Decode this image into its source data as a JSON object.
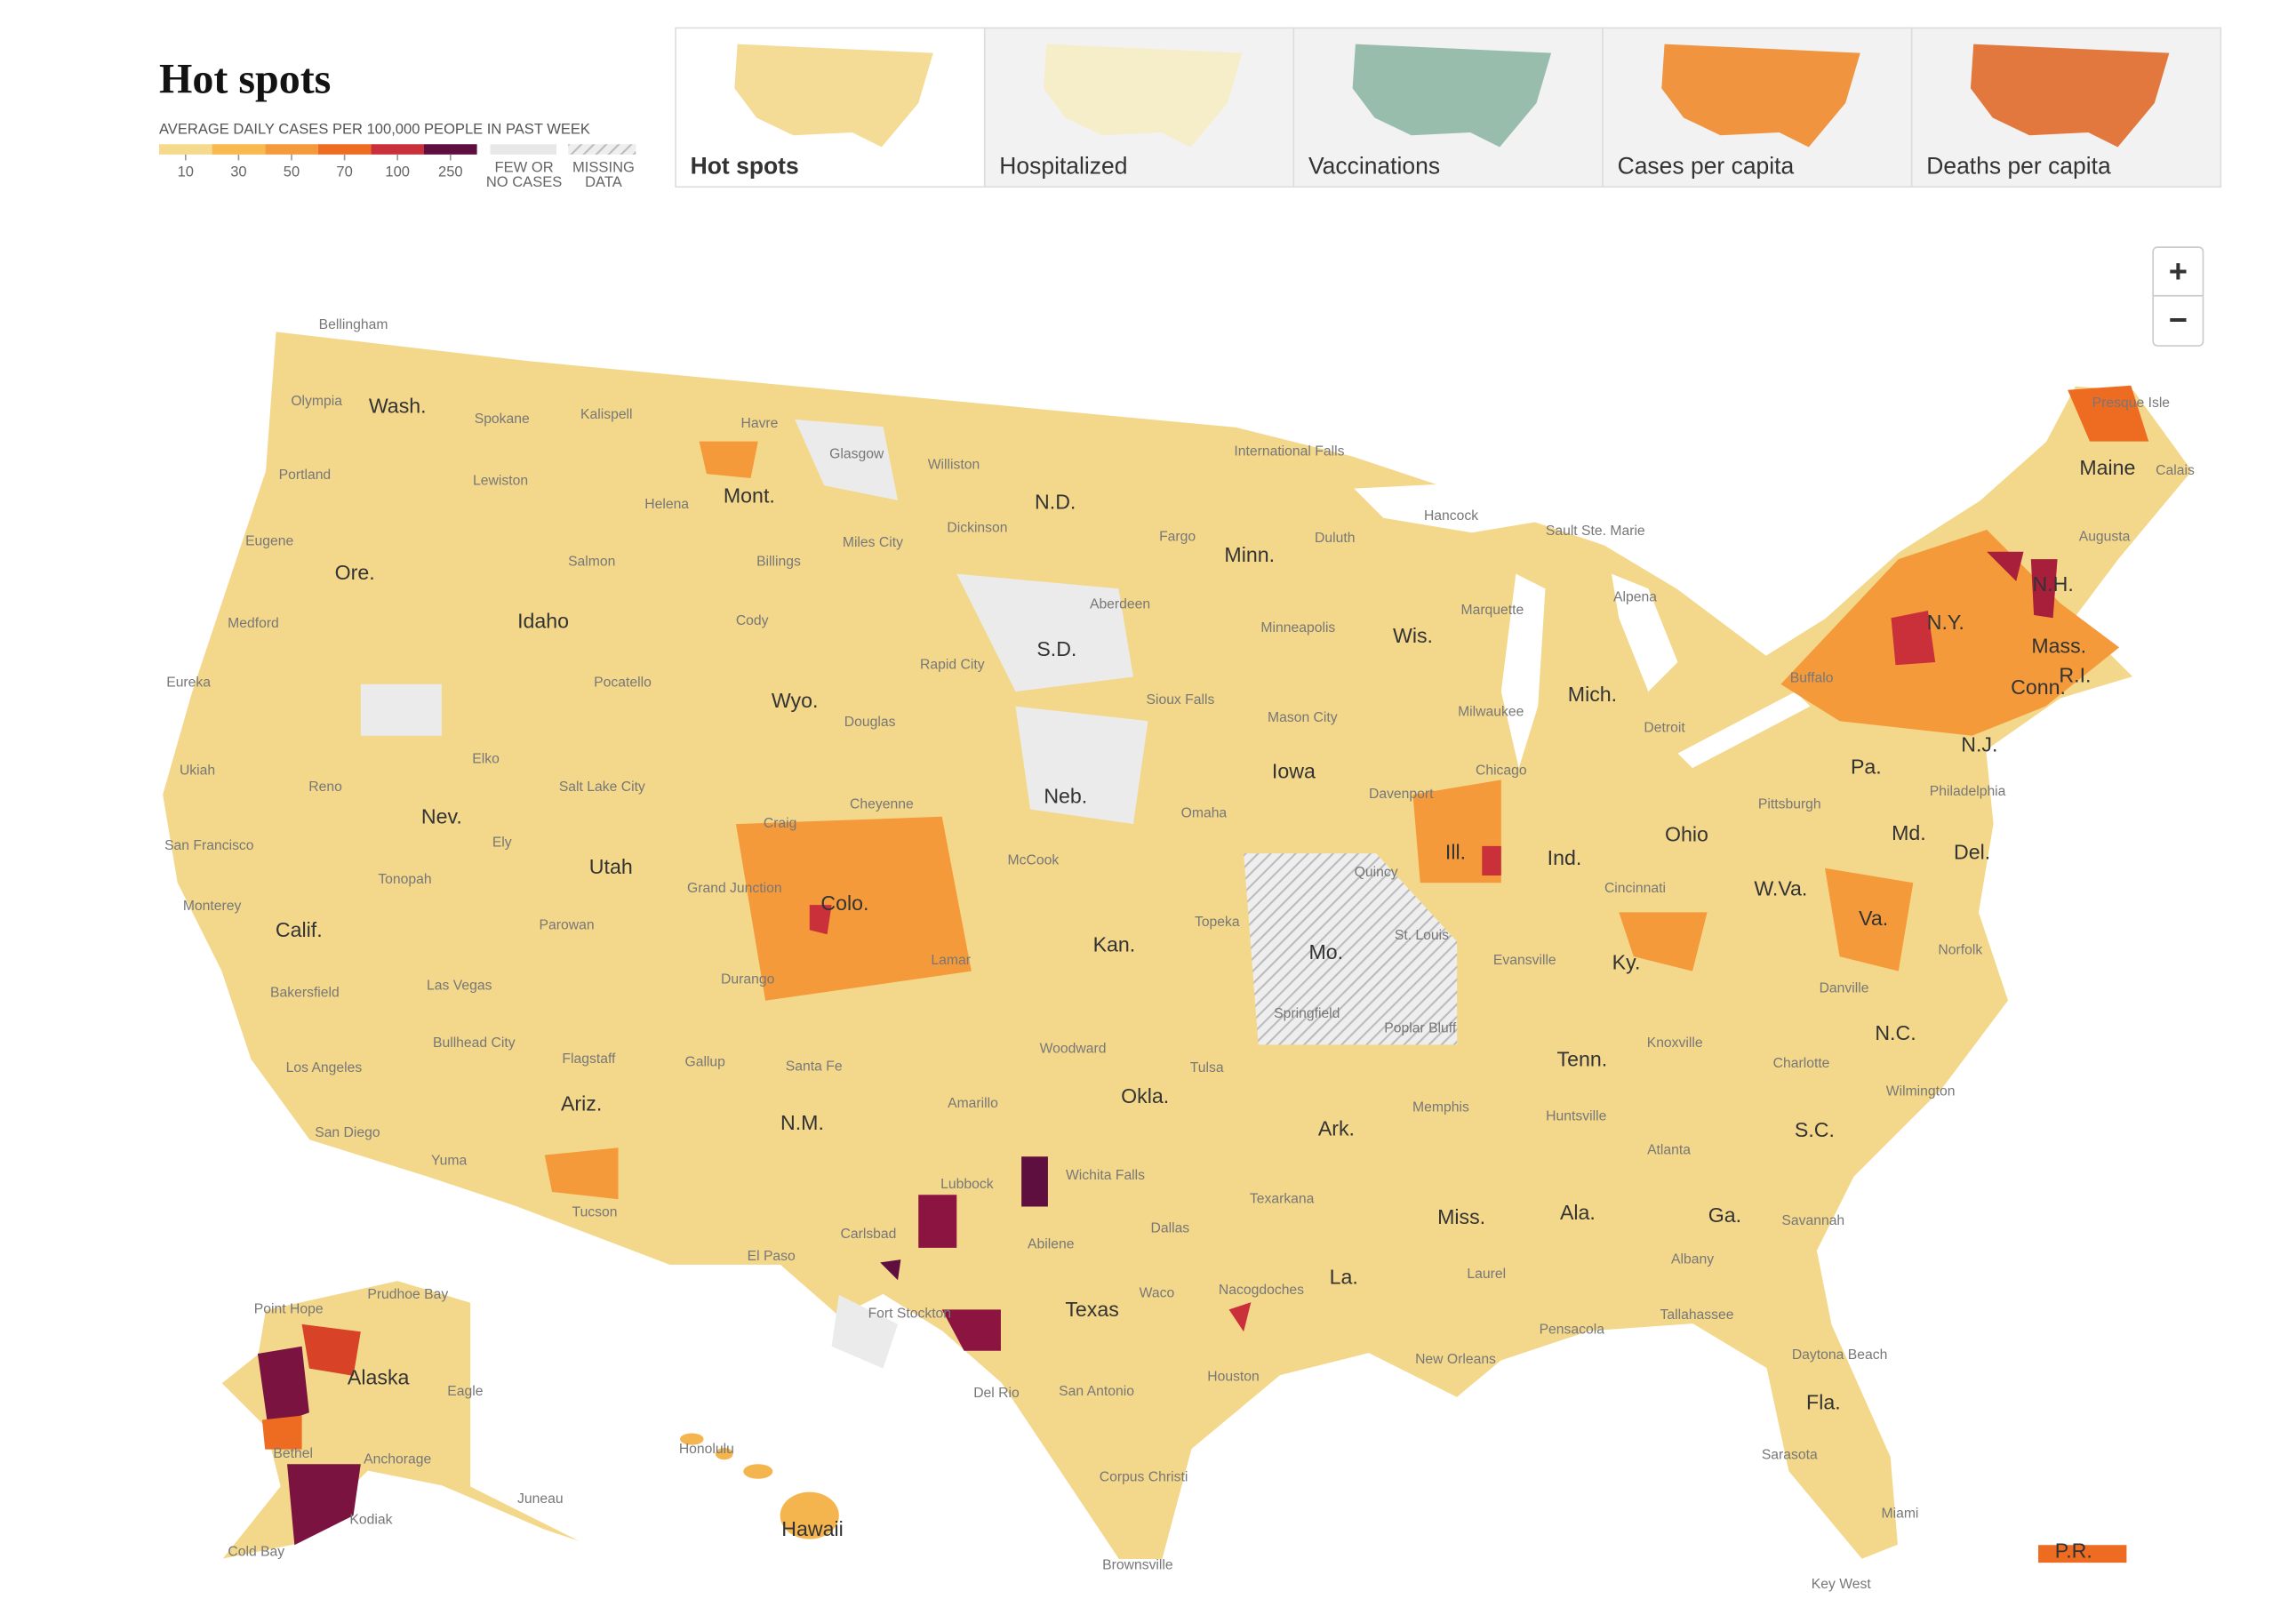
{
  "header": {
    "title": "Hot spots"
  },
  "legend": {
    "title": "AVERAGE DAILY CASES PER 100,000 PEOPLE IN PAST WEEK",
    "ticks": [
      10,
      30,
      50,
      70,
      100,
      250
    ],
    "colors": [
      "#f5da8d",
      "#f8b94e",
      "#f59a3a",
      "#ee6b22",
      "#c9303a",
      "#5e0f3f"
    ],
    "few_cases": [
      "FEW OR",
      "NO CASES"
    ],
    "missing": [
      "MISSING",
      "DATA"
    ]
  },
  "tabs": [
    {
      "label": "Hot spots",
      "active": true
    },
    {
      "label": "Hospitalized",
      "active": false
    },
    {
      "label": "Vaccinations",
      "active": false
    },
    {
      "label": "Cases per capita",
      "active": false
    },
    {
      "label": "Deaths per capita",
      "active": false
    }
  ],
  "zoom": {
    "in": "+",
    "out": "−"
  },
  "map": {
    "state_labels": [
      "Wash.",
      "Ore.",
      "Calif.",
      "Nev.",
      "Idaho",
      "Mont.",
      "Wyo.",
      "Utah",
      "Colo.",
      "Ariz.",
      "N.M.",
      "N.D.",
      "S.D.",
      "Neb.",
      "Kan.",
      "Okla.",
      "Texas",
      "Minn.",
      "Iowa",
      "Mo.",
      "Ark.",
      "La.",
      "Wis.",
      "Ill.",
      "Mich.",
      "Ind.",
      "Ohio",
      "Ky.",
      "Tenn.",
      "Miss.",
      "Ala.",
      "Ga.",
      "Fla.",
      "S.C.",
      "N.C.",
      "Va.",
      "W.Va.",
      "Md.",
      "Del.",
      "Pa.",
      "N.J.",
      "N.Y.",
      "Conn.",
      "R.I.",
      "Mass.",
      "N.H.",
      "Maine",
      "Alaska",
      "Hawaii",
      "P.R."
    ],
    "city_labels": [
      "Bellingham",
      "Olympia",
      "Spokane",
      "Kalispell",
      "Havre",
      "Glasgow",
      "Williston",
      "International Falls",
      "Presque Isle",
      "Portland",
      "Lewiston",
      "Helena",
      "Calais",
      "Eugene",
      "Salmon",
      "Billings",
      "Miles City",
      "Dickinson",
      "Fargo",
      "Duluth",
      "Hancock",
      "Sault Ste. Marie",
      "Augusta",
      "Medford",
      "Cody",
      "Aberdeen",
      "Minneapolis",
      "Marquette",
      "Alpena",
      "Eureka",
      "Pocatello",
      "Rapid City",
      "Sioux Falls",
      "Mason City",
      "Milwaukee",
      "Buffalo",
      "Detroit",
      "Douglas",
      "Ukiah",
      "Reno",
      "Elko",
      "Salt Lake City",
      "Craig",
      "Cheyenne",
      "Omaha",
      "Davenport",
      "Chicago",
      "Pittsburgh",
      "Philadelphia",
      "San Francisco",
      "Ely",
      "McCook",
      "Grand Junction",
      "Tonopah",
      "Monterey",
      "Parowan",
      "Topeka",
      "Quincy",
      "Cincinnati",
      "St. Louis",
      "Evansville",
      "Norfolk",
      "Durango",
      "Lamar",
      "Bakersfield",
      "Las Vegas",
      "Springfield",
      "Poplar Bluff",
      "Danville",
      "Bullhead City",
      "Woodward",
      "Knoxville",
      "Charlotte",
      "Los Angeles",
      "Flagstaff",
      "Gallup",
      "Santa Fe",
      "Tulsa",
      "Wilmington",
      "Amarillo",
      "Memphis",
      "Huntsville",
      "San Diego",
      "Yuma",
      "Atlanta",
      "Wichita Falls",
      "Lubbock",
      "Tucson",
      "Texarkana",
      "Savannah",
      "Carlsbad",
      "Dallas",
      "Abilene",
      "El Paso",
      "Albany",
      "Laurel",
      "Waco",
      "Nacogdoches",
      "Prudhoe Bay",
      "Point Hope",
      "Fort Stockton",
      "Tallahassee",
      "Pensacola",
      "Daytona Beach",
      "New Orleans",
      "Houston",
      "Eagle",
      "San Antonio",
      "Del Rio",
      "Honolulu",
      "Bethel",
      "Anchorage",
      "Sarasota",
      "Juneau",
      "Corpus Christi",
      "Kodiak",
      "Miami",
      "Cold Bay",
      "Brownsville",
      "Key West"
    ]
  }
}
